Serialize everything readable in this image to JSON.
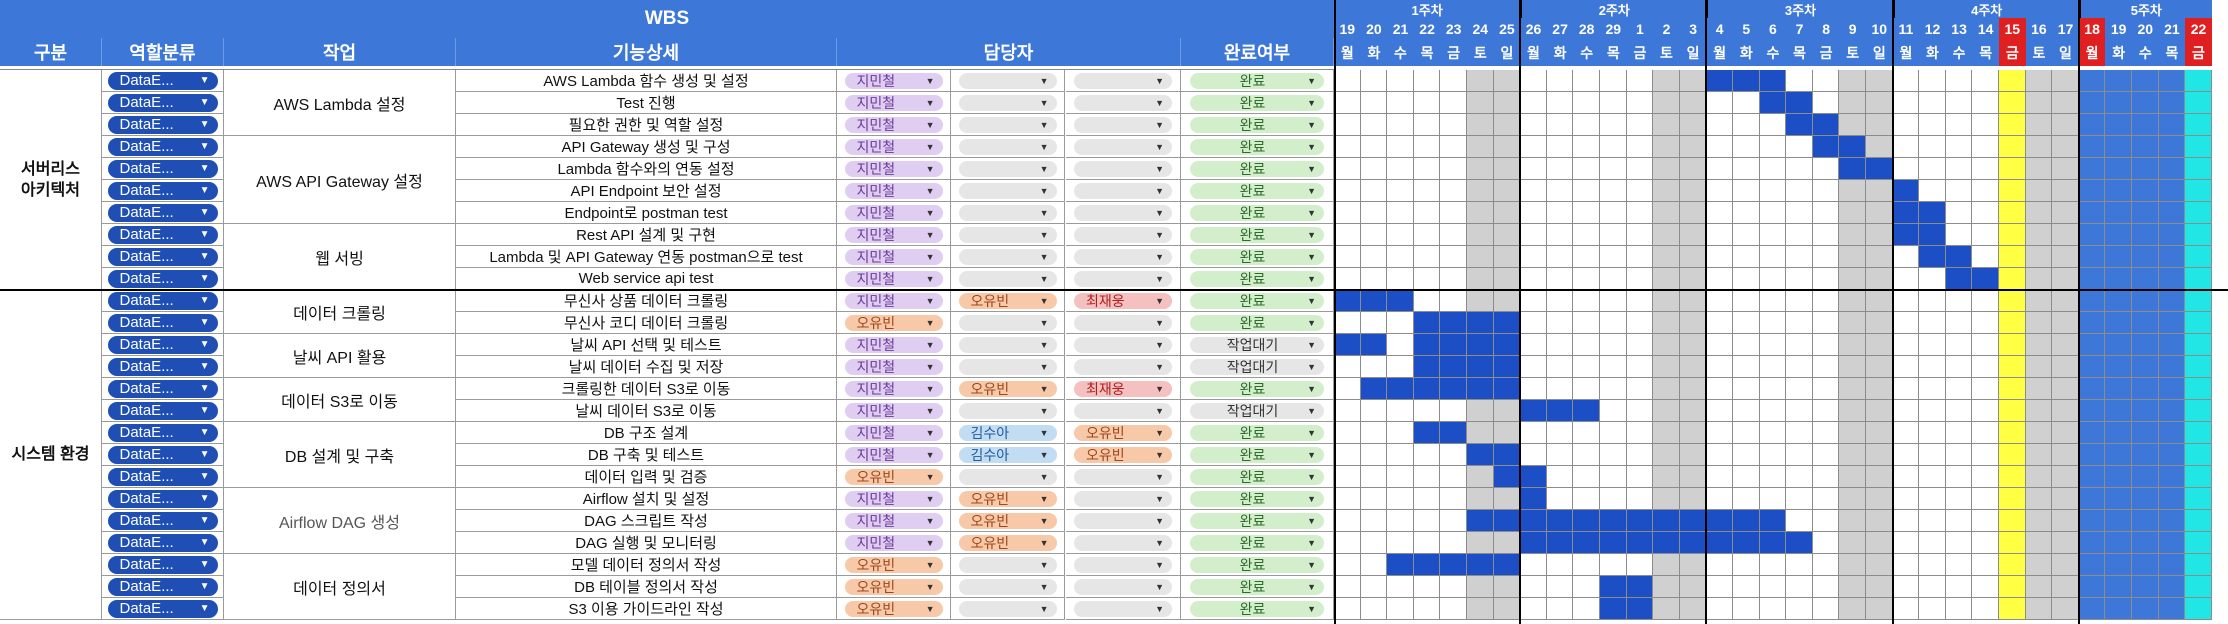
{
  "title": "WBS",
  "headers": {
    "group": "구분",
    "category": "역할분류",
    "task": "작업",
    "detail": "기능상세",
    "assignee": "담당자",
    "status": "완료여부"
  },
  "colors": {
    "header_blue": "#3d78d8",
    "bar_blue": "#1c4fc6",
    "weekend_gray": "#d0d0d0",
    "holiday_red": "#e02020",
    "holiday_yellow": "#ffff44",
    "week5_blue": "#3d78d8",
    "week5_cyan": "#22e6e6",
    "chip_purple": "#e0cdf2",
    "chip_orange": "#f7c9a8",
    "chip_red": "#f5c0c0",
    "chip_blue": "#c2dcf4",
    "chip_gray": "#e6e6e6",
    "chip_green": "#d2eecb"
  },
  "groups": [
    {
      "label": "서버리스\n아키텍처"
    },
    {
      "label": "시스템 환경"
    }
  ],
  "tasks": [
    {
      "label": "AWS Lambda 설정"
    },
    {
      "label": "AWS API Gateway 설정"
    },
    {
      "label": "웹 서빙"
    },
    {
      "label": "데이터 크롤링"
    },
    {
      "label": "날씨 API 활용"
    },
    {
      "label": "데이터 S3로 이동"
    },
    {
      "label": "DB 설계 및 구축"
    },
    {
      "label": "Airflow DAG 생성"
    },
    {
      "label": "데이터 정의서"
    }
  ],
  "category_label": "DataE...",
  "rows": [
    {
      "detail": "AWS Lambda 함수 생성 및 설정",
      "a1": "지민철",
      "a2": "",
      "a3": "",
      "status": "완료"
    },
    {
      "detail": "Test 진행",
      "a1": "지민철",
      "a2": "",
      "a3": "",
      "status": "완료"
    },
    {
      "detail": "필요한 권한 및 역할 설정",
      "a1": "지민철",
      "a2": "",
      "a3": "",
      "status": "완료"
    },
    {
      "detail": "API Gateway 생성 및 구성",
      "a1": "지민철",
      "a2": "",
      "a3": "",
      "status": "완료"
    },
    {
      "detail": "Lambda 함수와의 연동 설정",
      "a1": "지민철",
      "a2": "",
      "a3": "",
      "status": "완료"
    },
    {
      "detail": "API Endpoint 보안 설정",
      "a1": "지민철",
      "a2": "",
      "a3": "",
      "status": "완료"
    },
    {
      "detail": "Endpoint로 postman test",
      "a1": "지민철",
      "a2": "",
      "a3": "",
      "status": "완료"
    },
    {
      "detail": "Rest API 설계 및 구현",
      "a1": "지민철",
      "a2": "",
      "a3": "",
      "status": "완료"
    },
    {
      "detail": "Lambda 및 API Gateway 연동  postman으로 test",
      "a1": "지민철",
      "a2": "",
      "a3": "",
      "status": "완료"
    },
    {
      "detail": "Web service api test",
      "a1": "지민철",
      "a2": "",
      "a3": "",
      "status": "완료"
    },
    {
      "detail": "무신사 상품 데이터 크롤링",
      "a1": "지민철",
      "a2": "오유빈",
      "a3": "최재웅",
      "status": "완료"
    },
    {
      "detail": "무신사 코디 데이터 크롤링",
      "a1": "오유빈",
      "a2": "",
      "a3": "",
      "status": "완료"
    },
    {
      "detail": "날씨 API 선택 및 테스트",
      "a1": "지민철",
      "a2": "",
      "a3": "",
      "status": "작업대기"
    },
    {
      "detail": "날씨 데이터 수집 및 저장",
      "a1": "지민철",
      "a2": "",
      "a3": "",
      "status": "작업대기"
    },
    {
      "detail": "크롤링한 데이터 S3로 이동",
      "a1": "지민철",
      "a2": "오유빈",
      "a3": "최재웅",
      "status": "완료"
    },
    {
      "detail": "날씨 데이터 S3로 이동",
      "a1": "지민철",
      "a2": "",
      "a3": "",
      "status": "작업대기"
    },
    {
      "detail": "DB 구조 설계",
      "a1": "지민철",
      "a2": "김수아",
      "a3": "오유빈",
      "status": "완료"
    },
    {
      "detail": "DB 구축 및 테스트",
      "a1": "지민철",
      "a2": "김수아",
      "a3": "오유빈",
      "status": "완료"
    },
    {
      "detail": "데이터 입력 및 검증",
      "a1": "오유빈",
      "a2": "",
      "a3": "",
      "status": "완료"
    },
    {
      "detail": "Airflow 설치 및 설정",
      "a1": "지민철",
      "a2": "오유빈",
      "a3": "",
      "status": "완료"
    },
    {
      "detail": "DAG 스크립트 작성",
      "a1": "지민철",
      "a2": "오유빈",
      "a3": "",
      "status": "완료"
    },
    {
      "detail": "DAG 실행 및 모니터링",
      "a1": "지민철",
      "a2": "오유빈",
      "a3": "",
      "status": "완료"
    },
    {
      "detail": "모델 데이터 정의서 작성",
      "a1": "오유빈",
      "a2": "",
      "a3": "",
      "status": "완료"
    },
    {
      "detail": "DB 테이블 정의서 작성",
      "a1": "오유빈",
      "a2": "",
      "a3": "",
      "status": "완료"
    },
    {
      "detail": "S3 이용 가이드라인 작성",
      "a1": "오유빈",
      "a2": "",
      "a3": "",
      "status": "완료"
    }
  ],
  "weeks": [
    "1주차",
    "2주차",
    "3주차",
    "4주차",
    "5주차"
  ],
  "days": [
    {
      "d": "19",
      "w": "월"
    },
    {
      "d": "20",
      "w": "화"
    },
    {
      "d": "21",
      "w": "수"
    },
    {
      "d": "22",
      "w": "목"
    },
    {
      "d": "23",
      "w": "금"
    },
    {
      "d": "24",
      "w": "토"
    },
    {
      "d": "25",
      "w": "일"
    },
    {
      "d": "26",
      "w": "월"
    },
    {
      "d": "27",
      "w": "화"
    },
    {
      "d": "28",
      "w": "수"
    },
    {
      "d": "29",
      "w": "목"
    },
    {
      "d": "1",
      "w": "금"
    },
    {
      "d": "2",
      "w": "토"
    },
    {
      "d": "3",
      "w": "일"
    },
    {
      "d": "4",
      "w": "월"
    },
    {
      "d": "5",
      "w": "화"
    },
    {
      "d": "6",
      "w": "수"
    },
    {
      "d": "7",
      "w": "목"
    },
    {
      "d": "8",
      "w": "금"
    },
    {
      "d": "9",
      "w": "토"
    },
    {
      "d": "10",
      "w": "일"
    },
    {
      "d": "11",
      "w": "월"
    },
    {
      "d": "12",
      "w": "화"
    },
    {
      "d": "13",
      "w": "수"
    },
    {
      "d": "14",
      "w": "목"
    },
    {
      "d": "15",
      "w": "금"
    },
    {
      "d": "16",
      "w": "토"
    },
    {
      "d": "17",
      "w": "일"
    },
    {
      "d": "18",
      "w": "월"
    },
    {
      "d": "19",
      "w": "화"
    },
    {
      "d": "20",
      "w": "수"
    },
    {
      "d": "21",
      "w": "목"
    },
    {
      "d": "22",
      "w": "금"
    }
  ],
  "schedule": [
    [
      14,
      15,
      16
    ],
    [
      16,
      17
    ],
    [
      17,
      18
    ],
    [
      18,
      19
    ],
    [
      19,
      20
    ],
    [
      21
    ],
    [
      21,
      22
    ],
    [
      21,
      22
    ],
    [
      22,
      23
    ],
    [
      23,
      24
    ],
    [
      0,
      1,
      2
    ],
    [
      3,
      4,
      5,
      6
    ],
    [
      0,
      1,
      3,
      4,
      5,
      6
    ],
    [
      3,
      4,
      5,
      6
    ],
    [
      1,
      2,
      3,
      4,
      5,
      6
    ],
    [
      7,
      8,
      9
    ],
    [
      3,
      4
    ],
    [
      5,
      6
    ],
    [
      6,
      7
    ],
    [
      7
    ],
    [
      5,
      6,
      7,
      8,
      9,
      10,
      11,
      12,
      13,
      14,
      15,
      16
    ],
    [
      7,
      8,
      9,
      10,
      11,
      12,
      13,
      14,
      15,
      16,
      17
    ],
    [
      2,
      3,
      4,
      5,
      6
    ],
    [
      10,
      11
    ],
    [
      10,
      11
    ]
  ]
}
